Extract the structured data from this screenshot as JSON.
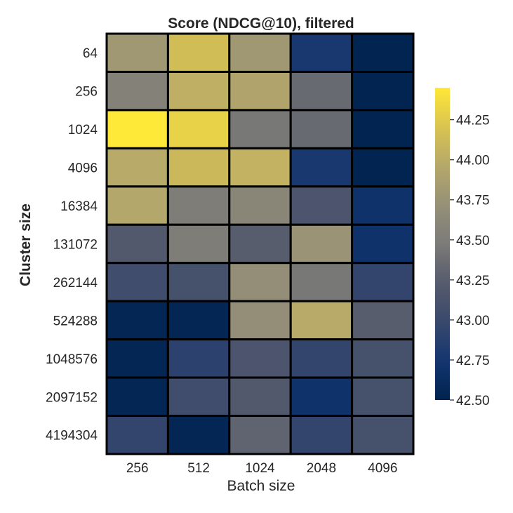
{
  "chart_data": {
    "type": "heatmap",
    "title": "Score (NDCG@10), filtered",
    "xlabel": "Batch size",
    "ylabel": "Cluster size",
    "x_categories": [
      "256",
      "512",
      "1024",
      "2048",
      "4096"
    ],
    "y_categories": [
      "64",
      "256",
      "1024",
      "4096",
      "16384",
      "131072",
      "262144",
      "524288",
      "1048576",
      "2097152",
      "4194304"
    ],
    "values": [
      [
        43.8,
        44.15,
        43.8,
        42.78,
        42.52
      ],
      [
        43.55,
        44.02,
        43.92,
        43.35,
        42.52
      ],
      [
        44.45,
        44.3,
        43.45,
        43.35,
        42.52
      ],
      [
        43.98,
        44.1,
        44.05,
        42.78,
        42.52
      ],
      [
        43.95,
        43.5,
        43.6,
        43.15,
        42.7
      ],
      [
        43.2,
        43.5,
        43.25,
        43.75,
        42.7
      ],
      [
        43.05,
        43.1,
        43.7,
        43.45,
        42.95
      ],
      [
        42.55,
        42.55,
        43.7,
        43.98,
        43.25
      ],
      [
        42.55,
        42.9,
        43.15,
        42.95,
        43.1
      ],
      [
        42.55,
        43.05,
        43.2,
        42.7,
        43.1
      ],
      [
        42.95,
        42.55,
        43.3,
        42.95,
        43.1
      ]
    ],
    "colormap": "cividis",
    "colorbar": {
      "vmin": 42.5,
      "vmax": 44.45,
      "ticks": [
        "42.50",
        "42.75",
        "43.00",
        "43.25",
        "43.50",
        "43.75",
        "44.00",
        "44.25"
      ]
    }
  }
}
